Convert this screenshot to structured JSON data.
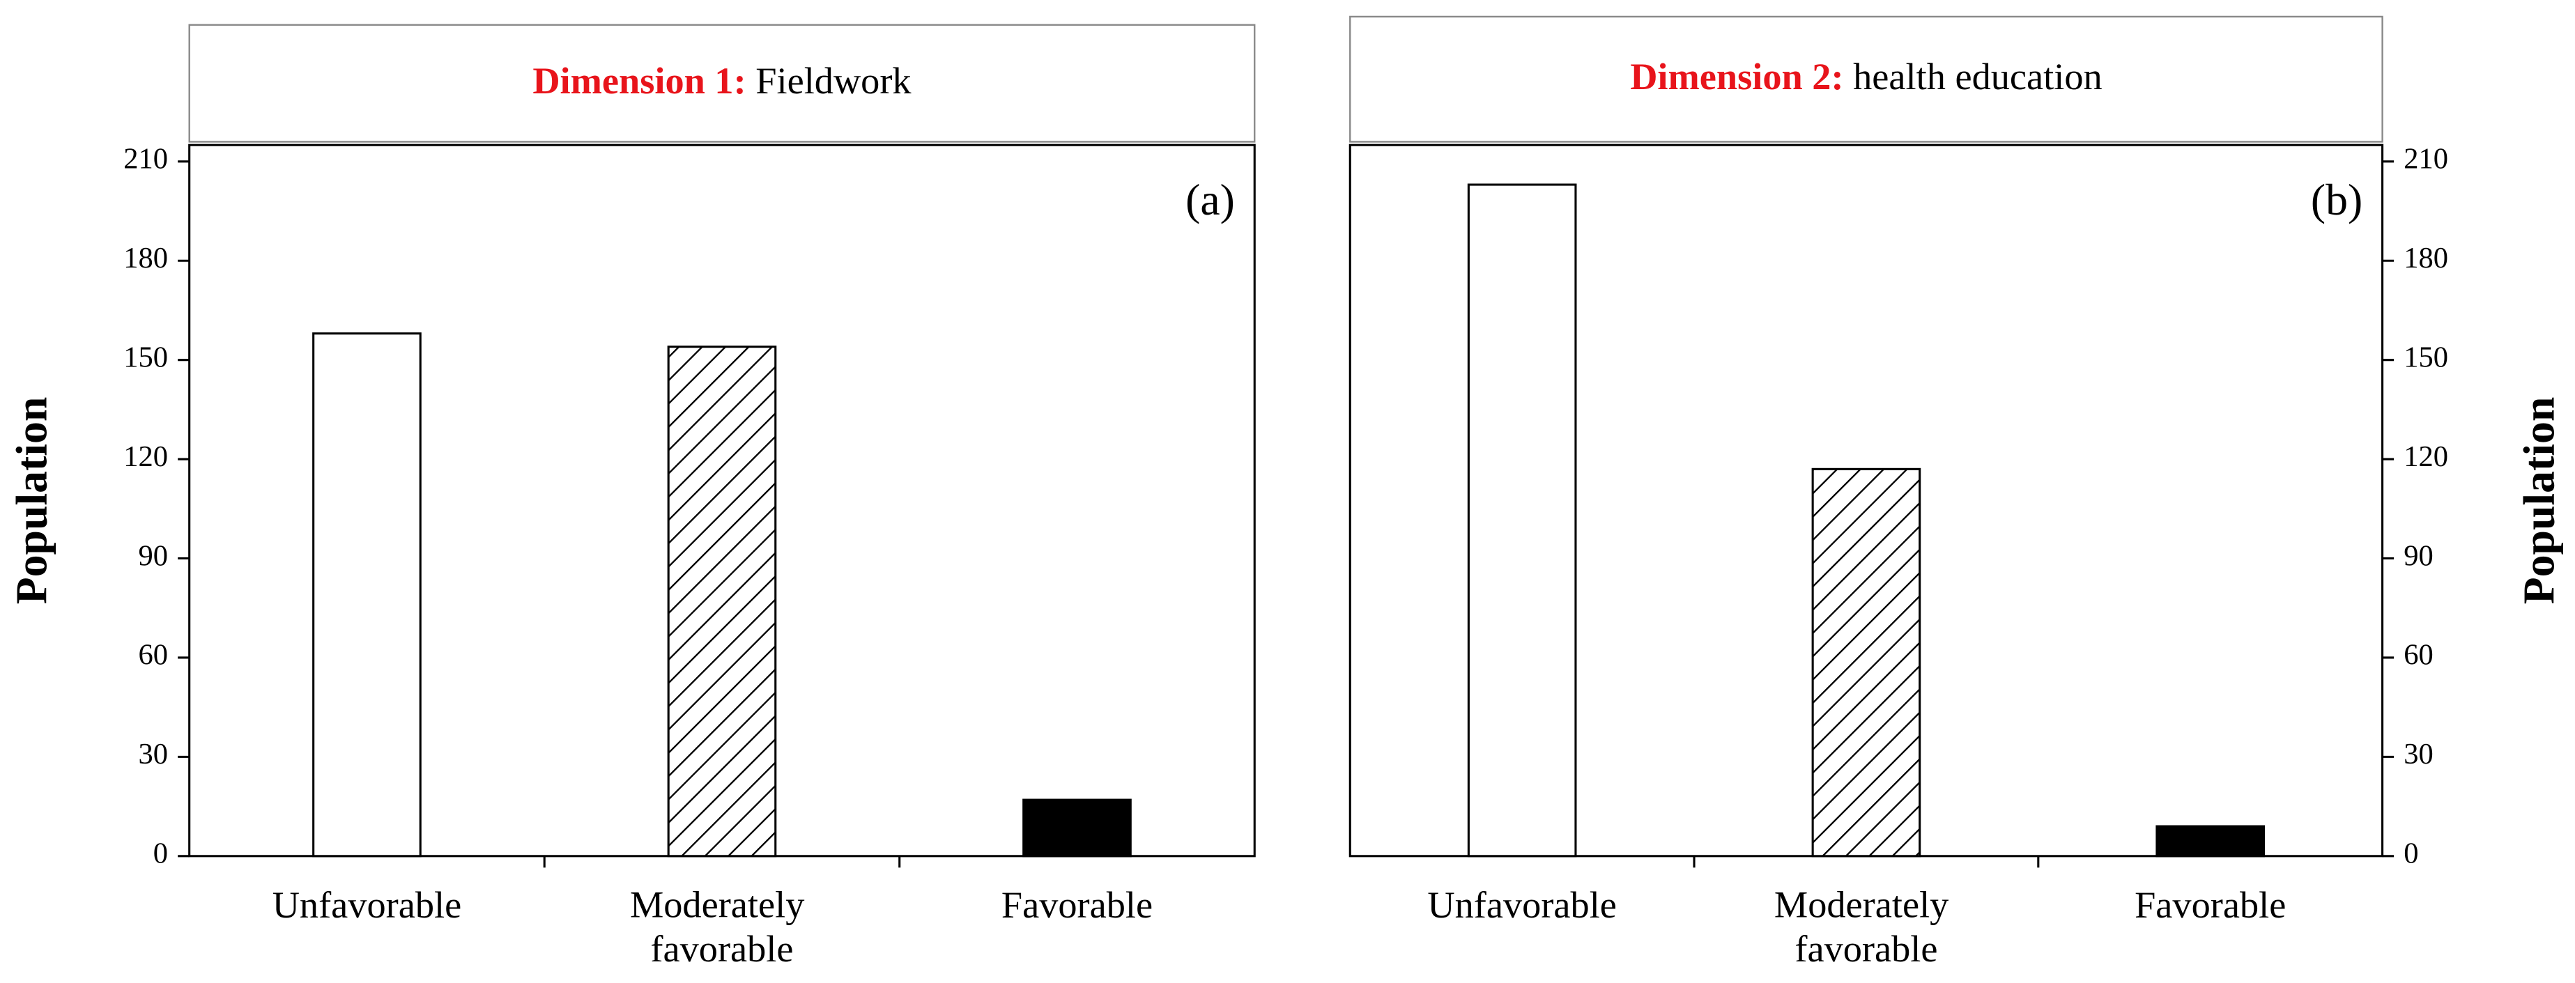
{
  "chart_data": [
    {
      "type": "bar",
      "title_label": "Dimension 1:",
      "title": "Fieldwork",
      "title_label_color": "#e8141b",
      "panel_label": "(a)",
      "y_label": "Population",
      "y_axis_side": "left",
      "categories": [
        "Unfavorable",
        "Moderately favorable",
        "Favorable"
      ],
      "values": [
        158,
        154,
        17
      ],
      "fills": [
        "empty",
        "hatch",
        "solid"
      ],
      "color": "#000000",
      "ylim": [
        0,
        210
      ],
      "yticks": [
        0,
        30,
        60,
        90,
        120,
        150,
        180,
        210
      ]
    },
    {
      "type": "bar",
      "title_label": "Dimension 2:",
      "title": "health education",
      "title_label_color": "#e8141b",
      "panel_label": "(b)",
      "y_label": "Population",
      "y_axis_side": "right",
      "categories": [
        "Unfavorable",
        "Moderately favorable",
        "Favorable"
      ],
      "values": [
        203,
        117,
        9
      ],
      "fills": [
        "empty",
        "hatch",
        "solid"
      ],
      "color": "#000000",
      "ylim": [
        0,
        210
      ],
      "yticks": [
        0,
        30,
        60,
        90,
        120,
        150,
        180,
        210
      ]
    }
  ]
}
